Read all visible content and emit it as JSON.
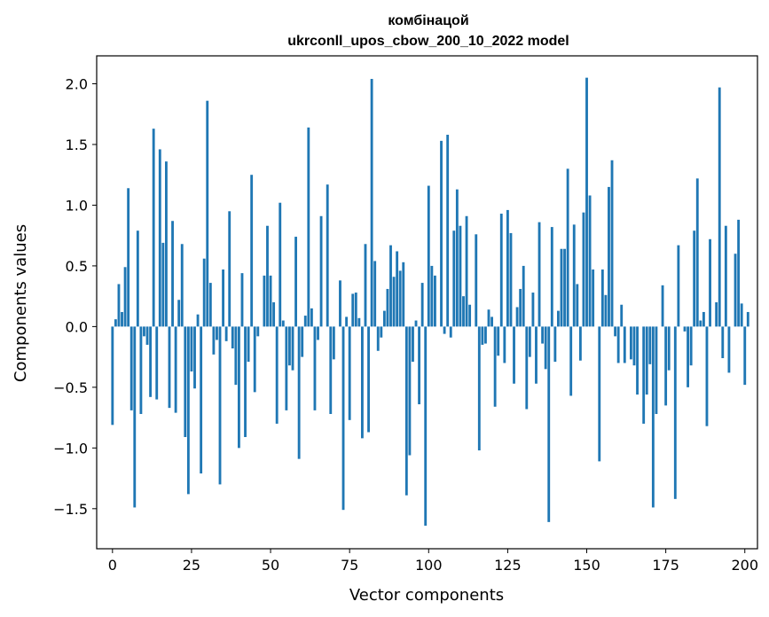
{
  "chart_data": {
    "type": "bar",
    "title_line1": "комбінацой",
    "title_line2": "ukrconll_upos_cbow_200_10_2022 model",
    "xlabel": "Vector components",
    "ylabel": "Components values",
    "xlim": [
      -5,
      204
    ],
    "ylim": [
      -1.83,
      2.23
    ],
    "xticks": [
      0,
      25,
      50,
      75,
      100,
      125,
      150,
      175,
      200
    ],
    "xtick_labels": [
      "0",
      "25",
      "50",
      "75",
      "100",
      "125",
      "150",
      "175",
      "200"
    ],
    "yticks": [
      -1.5,
      -1.0,
      -0.5,
      0.0,
      0.5,
      1.0,
      1.5,
      2.0
    ],
    "ytick_labels": [
      "−1.5",
      "−1.0",
      "−0.5",
      "0.0",
      "0.5",
      "1.0",
      "1.5",
      "2.0"
    ],
    "bar_color": "#1f77b4",
    "values": [
      -0.81,
      0.06,
      0.35,
      0.12,
      0.49,
      1.14,
      -0.69,
      -1.49,
      0.79,
      -0.72,
      -0.08,
      -0.15,
      -0.58,
      1.63,
      -0.6,
      1.46,
      0.69,
      1.36,
      -0.67,
      0.87,
      -0.71,
      0.22,
      0.68,
      -0.91,
      -1.38,
      -0.37,
      -0.51,
      0.1,
      -1.21,
      0.56,
      1.86,
      0.36,
      -0.23,
      -0.11,
      -1.3,
      0.47,
      -0.12,
      0.95,
      -0.18,
      -0.48,
      -1.0,
      0.44,
      -0.91,
      -0.29,
      1.25,
      -0.54,
      -0.08,
      0.0,
      0.42,
      0.83,
      0.42,
      0.2,
      -0.8,
      1.02,
      0.05,
      -0.69,
      -0.32,
      -0.36,
      0.74,
      -1.09,
      -0.25,
      0.09,
      1.64,
      0.15,
      -0.69,
      -0.11,
      0.91,
      0.0,
      1.17,
      -0.72,
      -0.27,
      0.0,
      0.38,
      -1.51,
      0.08,
      -0.77,
      0.27,
      0.28,
      0.07,
      -0.92,
      0.68,
      -0.87,
      2.04,
      0.54,
      -0.2,
      -0.09,
      0.13,
      0.31,
      0.67,
      0.41,
      0.62,
      0.46,
      0.53,
      -1.39,
      -1.06,
      -0.29,
      0.05,
      -0.64,
      0.36,
      -1.64,
      1.16,
      0.5,
      0.42,
      0.0,
      1.53,
      -0.06,
      1.58,
      -0.09,
      0.79,
      1.13,
      0.83,
      0.25,
      0.91,
      0.18,
      0.0,
      0.76,
      -1.02,
      -0.15,
      -0.14,
      0.14,
      0.08,
      -0.66,
      -0.24,
      0.93,
      -0.3,
      0.96,
      0.77,
      -0.47,
      0.16,
      0.31,
      0.5,
      -0.68,
      -0.25,
      0.28,
      -0.47,
      0.86,
      -0.14,
      -0.35,
      -1.61,
      0.82,
      -0.29,
      0.13,
      0.64,
      0.64,
      1.3,
      -0.57,
      0.84,
      0.35,
      -0.28,
      0.94,
      2.05,
      1.08,
      0.47,
      0.0,
      -1.11,
      0.47,
      0.26,
      1.15,
      1.37,
      -0.08,
      -0.3,
      0.18,
      -0.3,
      0.0,
      -0.27,
      -0.32,
      -0.56,
      0.0,
      -0.8,
      -0.56,
      -0.31,
      -1.49,
      -0.72,
      0.0,
      0.34,
      -0.65,
      -0.36,
      0.0,
      -1.42,
      0.67,
      0.0,
      -0.04,
      -0.5,
      -0.32,
      0.79,
      1.22,
      0.05,
      0.12,
      -0.82,
      0.72,
      0.0,
      0.2,
      1.97,
      -0.26,
      0.83,
      -0.38,
      0.0,
      0.6,
      0.88,
      0.19,
      -0.48,
      0.12
    ]
  }
}
